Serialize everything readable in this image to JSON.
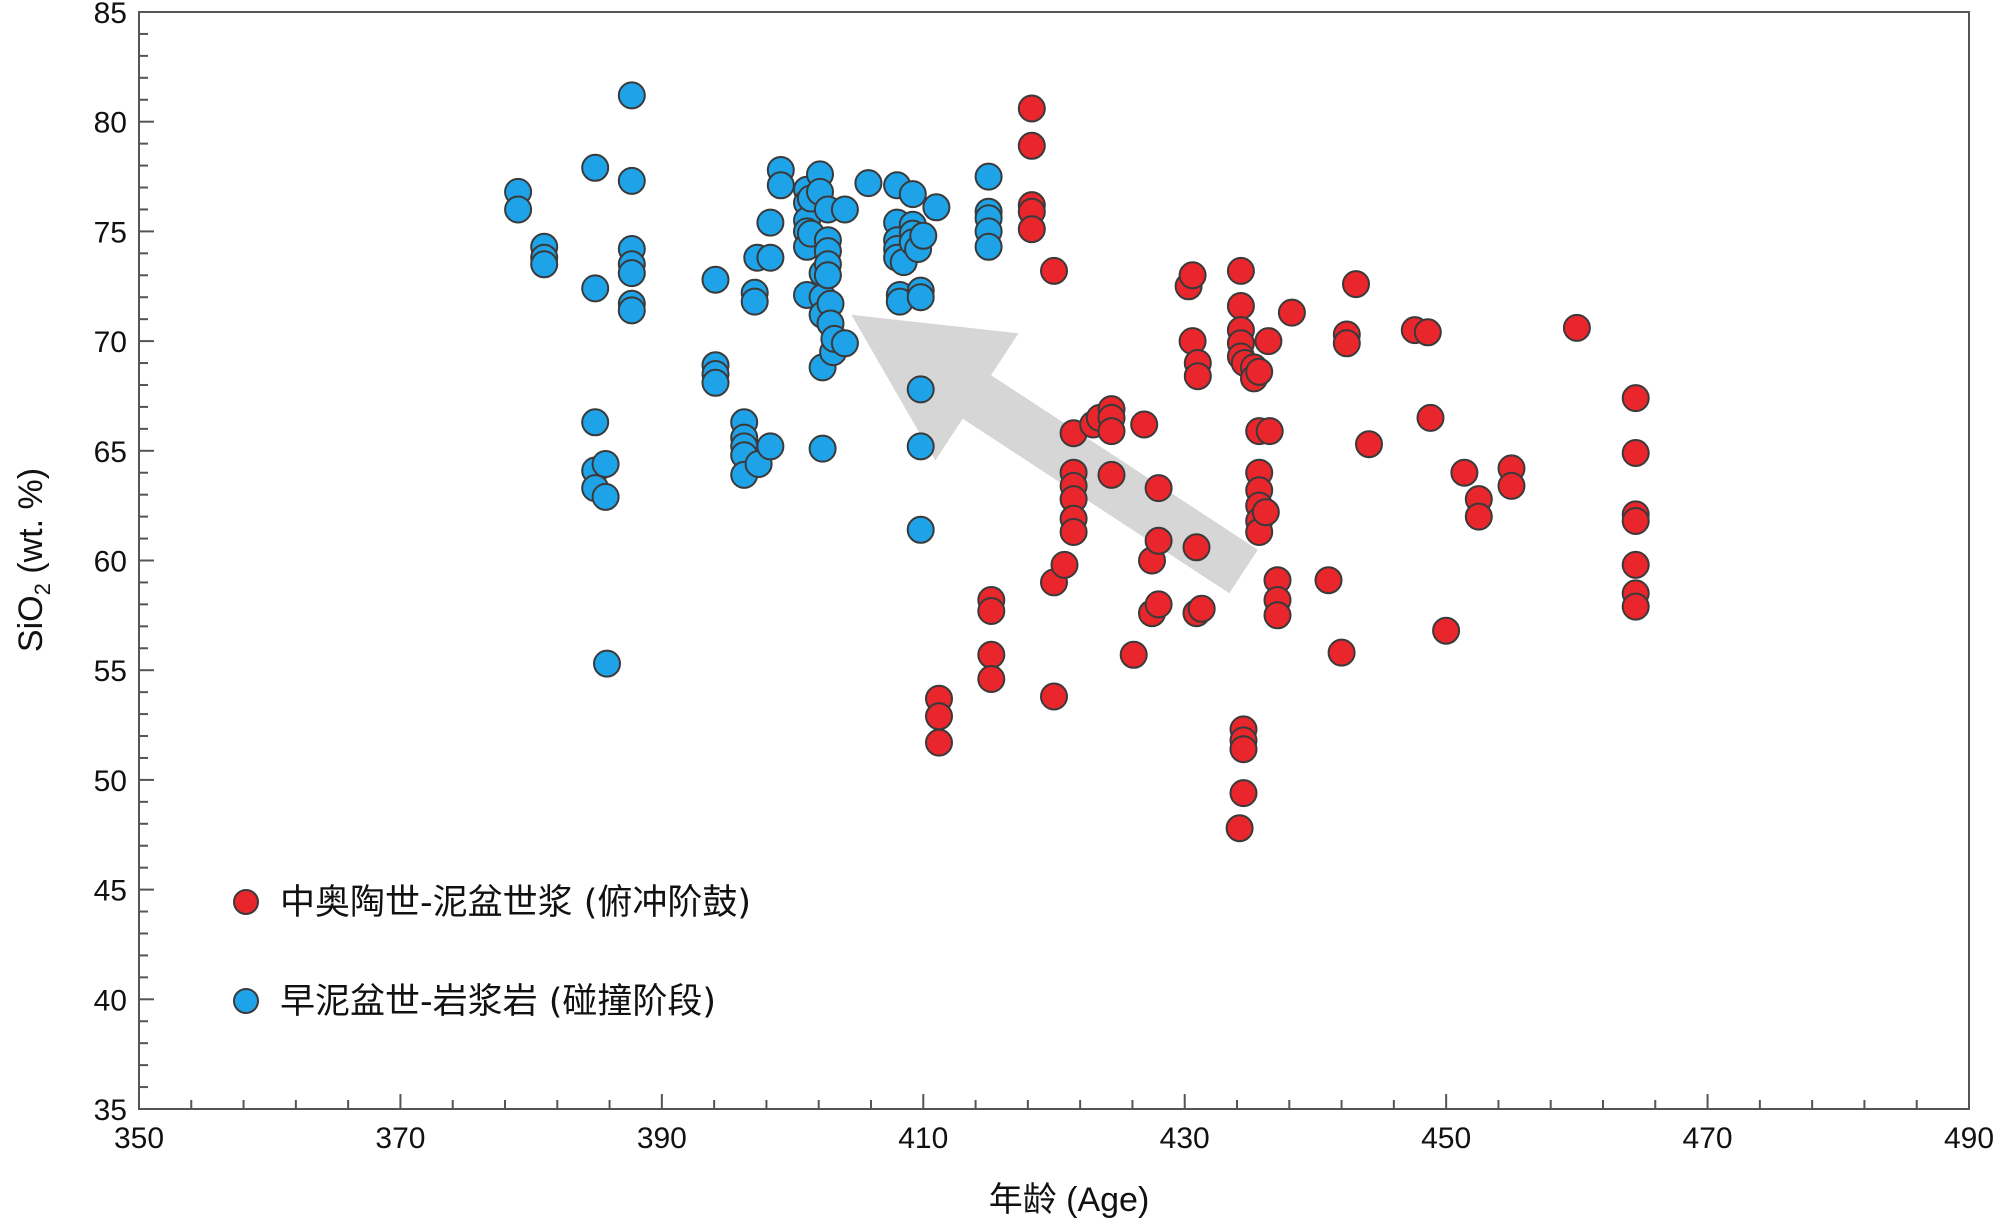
{
  "chart_data": {
    "type": "scatter",
    "title": "",
    "xlabel": "年龄 (Age)",
    "ylabel_main": "SiO",
    "ylabel_sub": "2",
    "ylabel_unit": " (wt. %)",
    "xlim": [
      350,
      490
    ],
    "ylim": [
      35,
      85
    ],
    "x_ticks": [
      350,
      370,
      390,
      410,
      430,
      450,
      470,
      490
    ],
    "y_ticks": [
      35,
      40,
      45,
      50,
      55,
      60,
      65,
      70,
      75,
      80,
      85
    ],
    "x_minor_step": 4,
    "y_minor_step": 1,
    "grid": false,
    "legend_position": "bottom-left",
    "series": [
      {
        "name": "中奥陶世-泥盆世浆 (俯冲阶鼓)",
        "color": "#e8262c",
        "points": [
          [
            418.3,
            80.6
          ],
          [
            418.3,
            78.9
          ],
          [
            418.3,
            76.2
          ],
          [
            418.3,
            75.9
          ],
          [
            418.3,
            75.1
          ],
          [
            420,
            73.2
          ],
          [
            411.2,
            53.7
          ],
          [
            411.2,
            52.9
          ],
          [
            411.2,
            51.7
          ],
          [
            420,
            53.8
          ],
          [
            420,
            59
          ],
          [
            415.2,
            58.2
          ],
          [
            415.2,
            57.7
          ],
          [
            415.2,
            55.7
          ],
          [
            415.2,
            54.6
          ],
          [
            420.8,
            59.8
          ],
          [
            421.5,
            65.8
          ],
          [
            421.5,
            64
          ],
          [
            421.5,
            63.4
          ],
          [
            421.5,
            62.8
          ],
          [
            421.5,
            61.9
          ],
          [
            421.5,
            61.3
          ],
          [
            423,
            66.2
          ],
          [
            423.5,
            66.5
          ],
          [
            424.4,
            66.9
          ],
          [
            424.4,
            66.5
          ],
          [
            424.4,
            65.9
          ],
          [
            424.4,
            63.9
          ],
          [
            426.1,
            55.7
          ],
          [
            426.9,
            66.2
          ],
          [
            427.5,
            60
          ],
          [
            427.5,
            57.6
          ],
          [
            428,
            63.3
          ],
          [
            428,
            60.9
          ],
          [
            428,
            58
          ],
          [
            430.3,
            72.5
          ],
          [
            430.6,
            73
          ],
          [
            430.6,
            70
          ],
          [
            431,
            69
          ],
          [
            431,
            68.4
          ],
          [
            430.9,
            60.6
          ],
          [
            430.9,
            57.6
          ],
          [
            431.3,
            57.8
          ],
          [
            434.3,
            73.2
          ],
          [
            434.3,
            71.6
          ],
          [
            434.3,
            70.5
          ],
          [
            434.3,
            69.9
          ],
          [
            434.3,
            69.3
          ],
          [
            434.6,
            69
          ],
          [
            435.3,
            68.8
          ],
          [
            435.3,
            68.3
          ],
          [
            435.7,
            68.6
          ],
          [
            436.4,
            70
          ],
          [
            435.7,
            65.9
          ],
          [
            436.5,
            65.9
          ],
          [
            435.7,
            64
          ],
          [
            435.7,
            63.2
          ],
          [
            435.7,
            62.5
          ],
          [
            435.7,
            61.8
          ],
          [
            435.7,
            61.3
          ],
          [
            436.2,
            62.2
          ],
          [
            437.1,
            59.1
          ],
          [
            437.1,
            58.2
          ],
          [
            437.1,
            57.5
          ],
          [
            434.5,
            52.3
          ],
          [
            434.5,
            51.8
          ],
          [
            434.5,
            51.4
          ],
          [
            434.5,
            49.4
          ],
          [
            434.2,
            47.8
          ],
          [
            438.2,
            71.3
          ],
          [
            441,
            59.1
          ],
          [
            442,
            55.8
          ],
          [
            442.4,
            70.3
          ],
          [
            442.4,
            69.9
          ],
          [
            443.1,
            72.6
          ],
          [
            444.1,
            65.3
          ],
          [
            447.6,
            70.5
          ],
          [
            448.6,
            70.4
          ],
          [
            448.8,
            66.5
          ],
          [
            450,
            56.8
          ],
          [
            451.4,
            64
          ],
          [
            452.5,
            62.8
          ],
          [
            452.5,
            62
          ],
          [
            455,
            64.2
          ],
          [
            455,
            63.4
          ],
          [
            460,
            70.6
          ],
          [
            464.5,
            67.4
          ],
          [
            464.5,
            64.9
          ],
          [
            464.5,
            62.1
          ],
          [
            464.5,
            61.8
          ],
          [
            464.5,
            59.8
          ],
          [
            464.5,
            58.5
          ],
          [
            464.5,
            57.9
          ]
        ]
      },
      {
        "name": "早泥盆世-岩浆岩 (碰撞阶段)",
        "color": "#1fa3e8",
        "points": [
          [
            379,
            76.8
          ],
          [
            379,
            76
          ],
          [
            381,
            74.3
          ],
          [
            381,
            73.8
          ],
          [
            381,
            73.5
          ],
          [
            384.9,
            77.9
          ],
          [
            384.9,
            72.4
          ],
          [
            384.9,
            66.3
          ],
          [
            384.9,
            64.1
          ],
          [
            384.9,
            63.3
          ],
          [
            385.7,
            64.4
          ],
          [
            385.7,
            62.9
          ],
          [
            385.8,
            55.3
          ],
          [
            387.7,
            81.2
          ],
          [
            387.7,
            77.3
          ],
          [
            387.7,
            74.2
          ],
          [
            387.7,
            73.5
          ],
          [
            387.7,
            73.1
          ],
          [
            387.7,
            71.7
          ],
          [
            387.7,
            71.4
          ],
          [
            394.1,
            72.8
          ],
          [
            394.1,
            68.9
          ],
          [
            394.1,
            68.5
          ],
          [
            394.1,
            68.1
          ],
          [
            396.3,
            66.3
          ],
          [
            396.3,
            65.6
          ],
          [
            396.3,
            65.2
          ],
          [
            396.3,
            64.8
          ],
          [
            396.3,
            63.9
          ],
          [
            397.1,
            72.2
          ],
          [
            397.1,
            71.8
          ],
          [
            397.3,
            73.8
          ],
          [
            397.4,
            64.4
          ],
          [
            398.3,
            75.4
          ],
          [
            398.3,
            73.8
          ],
          [
            398.3,
            65.2
          ],
          [
            399.1,
            77.8
          ],
          [
            399.1,
            77.1
          ],
          [
            401.1,
            76.9
          ],
          [
            401.1,
            76.3
          ],
          [
            401.1,
            75.5
          ],
          [
            401.1,
            75
          ],
          [
            401.1,
            74.3
          ],
          [
            401.1,
            72.1
          ],
          [
            401.4,
            76.5
          ],
          [
            401.4,
            74.9
          ],
          [
            402.1,
            77.6
          ],
          [
            402.1,
            76.8
          ],
          [
            402.3,
            73.1
          ],
          [
            402.3,
            72
          ],
          [
            402.3,
            71.2
          ],
          [
            402.3,
            68.8
          ],
          [
            402.3,
            65.1
          ],
          [
            402.7,
            76
          ],
          [
            402.7,
            74.6
          ],
          [
            402.7,
            74.1
          ],
          [
            402.7,
            73.5
          ],
          [
            402.7,
            73
          ],
          [
            402.9,
            71.7
          ],
          [
            402.9,
            70.8
          ],
          [
            403.1,
            69.5
          ],
          [
            403.2,
            70.1
          ],
          [
            404,
            76
          ],
          [
            404,
            69.9
          ],
          [
            405.8,
            77.2
          ],
          [
            408,
            77.1
          ],
          [
            408,
            75.4
          ],
          [
            408,
            74.6
          ],
          [
            408,
            74.2
          ],
          [
            408,
            73.8
          ],
          [
            408.2,
            72.1
          ],
          [
            408.2,
            71.8
          ],
          [
            408.5,
            73.6
          ],
          [
            409.2,
            76.7
          ],
          [
            409.2,
            75.3
          ],
          [
            409.2,
            74.9
          ],
          [
            409.2,
            74.5
          ],
          [
            409.6,
            74.2
          ],
          [
            410,
            74.8
          ],
          [
            409.8,
            72.3
          ],
          [
            409.8,
            72
          ],
          [
            409.8,
            67.8
          ],
          [
            409.8,
            65.2
          ],
          [
            409.8,
            61.4
          ],
          [
            411,
            76.1
          ],
          [
            415,
            77.5
          ],
          [
            415,
            75.9
          ],
          [
            415,
            75.6
          ],
          [
            415,
            75
          ],
          [
            415,
            74.3
          ]
        ]
      }
    ],
    "annotation_arrow": {
      "from": [
        434.5,
        59.5
      ],
      "to": [
        404.5,
        71.2
      ]
    }
  }
}
